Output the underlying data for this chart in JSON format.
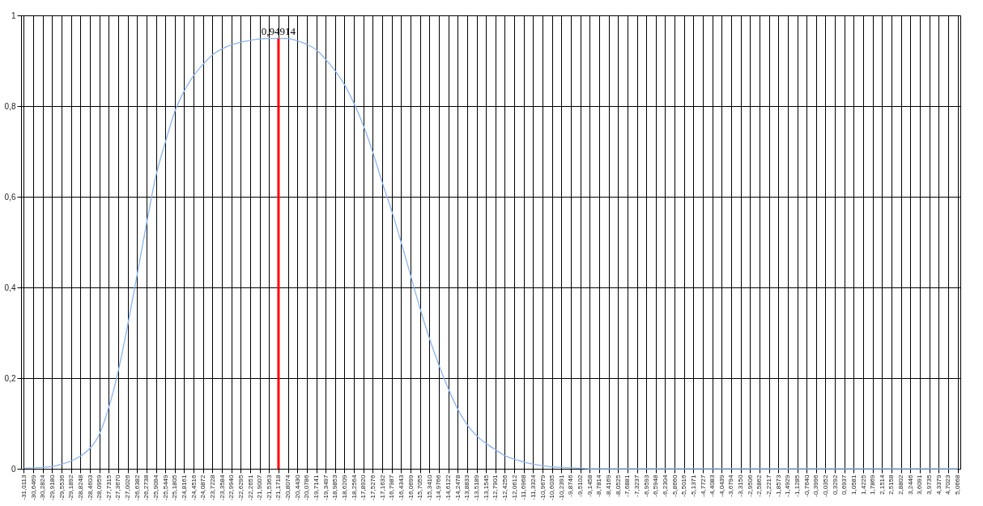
{
  "chart_data": {
    "type": "line",
    "categories": [
      "-31,0113",
      "-30,6469",
      "-30,2824",
      "-29,9180",
      "-29,5536",
      "-29,1892",
      "-28,8248",
      "-28,4603",
      "-28,0959",
      "-27,7315",
      "-27,3670",
      "-27,0026",
      "-26,6382",
      "-26,2738",
      "-25,9094",
      "-25,5449",
      "-25,1805",
      "-24,8161",
      "-24,4516",
      "-24,0872",
      "-23,7228",
      "-23,3584",
      "-22,9940",
      "-22,6295",
      "-22,2651",
      "-21,9007",
      "-21,5363",
      "-21,1718",
      "-20,8074",
      "-20,4430",
      "-20,0786",
      "-19,7141",
      "-19,3497",
      "-18,9853",
      "-18,6209",
      "-18,2564",
      "-17,8920",
      "-17,5276",
      "-17,1632",
      "-16,7987",
      "-16,4343",
      "-16,0699",
      "-15,7055",
      "-15,3410",
      "-14,9766",
      "-14,6122",
      "-14,2478",
      "-13,8833",
      "-13,5189",
      "-13,1545",
      "-12,7901",
      "-12,4256",
      "-12,0612",
      "-11,6968",
      "-11,3324",
      "-10,9679",
      "-10,6035",
      "-10,2391",
      "-9,8746",
      "-9,5102",
      "-9,1458",
      "-8,7814",
      "-8,4169",
      "-8,0525",
      "-7,6881",
      "-7,3237",
      "-6,9593",
      "-6,5948",
      "-6,2304",
      "-5,8660",
      "-5,5016",
      "-5,1371",
      "-4,7727",
      "-4,4083",
      "-4,0439",
      "-3,6794",
      "-3,3150",
      "-2,9506",
      "-2,5862",
      "-2,2217",
      "-1,8573",
      "-1,4929",
      "-1,1285",
      "-0,7640",
      "-0,3996",
      "-0,0352",
      "0,3292",
      "0,6937",
      "1,0581",
      "1,4225",
      "1,7869",
      "2,1514",
      "2,5158",
      "2,8802",
      "3,2446",
      "3,6091",
      "3,9735",
      "4,3379",
      "4,7023",
      "5,0668"
    ],
    "series": [
      {
        "color": "#8ab4f0",
        "values": [
          0.001,
          0.002,
          0.003,
          0.005,
          0.01,
          0.017,
          0.028,
          0.045,
          0.076,
          0.135,
          0.215,
          0.316,
          0.427,
          0.54,
          0.646,
          0.72,
          0.788,
          0.833,
          0.867,
          0.892,
          0.913,
          0.926,
          0.935,
          0.941,
          0.945,
          0.948,
          0.949,
          0.949,
          0.949,
          0.944,
          0.936,
          0.924,
          0.903,
          0.878,
          0.847,
          0.806,
          0.757,
          0.698,
          0.632,
          0.569,
          0.5,
          0.427,
          0.354,
          0.288,
          0.229,
          0.177,
          0.132,
          0.097,
          0.073,
          0.056,
          0.042,
          0.029,
          0.021,
          0.015,
          0.01,
          0.007,
          0.004,
          0.003,
          0.002,
          0.001,
          0,
          0,
          0,
          0,
          0,
          0,
          0,
          0,
          0,
          0,
          0,
          0,
          0,
          0,
          0,
          0,
          0,
          0,
          0,
          0,
          0,
          0,
          0,
          0,
          0,
          0,
          0,
          0,
          0,
          0,
          0,
          0,
          0,
          0,
          0,
          0,
          0,
          0,
          0,
          0
        ]
      },
      {
        "type": "bar",
        "color": "#ff0000",
        "x": [
          "-21,1718"
        ],
        "values": [
          0.94914
        ],
        "value_labels": [
          "0,94914"
        ]
      }
    ],
    "ylim": [
      0,
      1
    ],
    "yticks": [
      0,
      {
        "value": 0.2,
        "label": "0,2"
      },
      {
        "value": 0.4,
        "label": "0,4"
      },
      {
        "value": 0.6,
        "label": "0,6"
      },
      {
        "value": 0.8,
        "label": "0,8"
      },
      1
    ],
    "grid": true
  }
}
